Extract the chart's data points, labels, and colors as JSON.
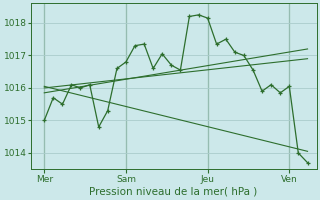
{
  "background_color": "#cce8ea",
  "grid_color": "#aacccc",
  "line_color": "#2d6e2d",
  "title": "Pression niveau de la mer( hPa )",
  "ylim": [
    1013.5,
    1018.6
  ],
  "yticks": [
    1014,
    1015,
    1016,
    1017,
    1018
  ],
  "day_labels": [
    "Mer",
    "Sam",
    "Jeu",
    "Ven"
  ],
  "day_positions": [
    1,
    4,
    7,
    10
  ],
  "series1_x": [
    1,
    1.33,
    1.67,
    2.0,
    2.33,
    2.67,
    3.0,
    3.33,
    3.67,
    4.0,
    4.33,
    4.67,
    5.0,
    5.33,
    5.67,
    6.0,
    6.33,
    6.67,
    7.0,
    7.33,
    7.67,
    8.0,
    8.33,
    8.67,
    9.0,
    9.33,
    9.67,
    10.0,
    10.33,
    10.67
  ],
  "series1_y": [
    1015.0,
    1015.7,
    1015.5,
    1016.1,
    1016.0,
    1016.1,
    1014.8,
    1015.3,
    1016.6,
    1016.8,
    1017.3,
    1017.35,
    1016.6,
    1017.05,
    1016.7,
    1016.55,
    1018.2,
    1018.25,
    1018.15,
    1017.35,
    1017.5,
    1017.1,
    1017.0,
    1016.55,
    1015.9,
    1016.1,
    1015.85,
    1016.05,
    1014.0,
    1013.7
  ],
  "trend1_x": [
    1,
    10.67
  ],
  "trend1_y": [
    1015.85,
    1017.2
  ],
  "trend2_x": [
    1,
    10.67
  ],
  "trend2_y": [
    1016.0,
    1016.9
  ],
  "trend3_x": [
    1,
    10.67
  ],
  "trend3_y": [
    1016.05,
    1014.05
  ],
  "xmin": 0.5,
  "xmax": 11.0
}
